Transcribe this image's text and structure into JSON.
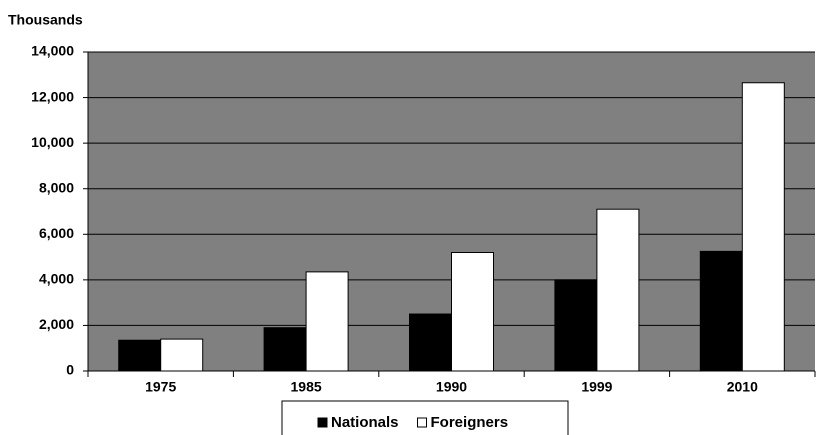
{
  "chart_data": {
    "type": "bar",
    "y_label": "Thousands",
    "categories": [
      "1975",
      "1985",
      "1990",
      "1999",
      "2010"
    ],
    "series": [
      {
        "name": "Nationals",
        "color": "#000000",
        "values": [
          1350,
          1900,
          2500,
          4000,
          5250
        ]
      },
      {
        "name": "Foreigners",
        "color": "#ffffff",
        "values": [
          1400,
          4350,
          5200,
          7100,
          12650
        ]
      }
    ],
    "ylim": [
      0,
      14000
    ],
    "yticks": [
      0,
      {
        "value": 2000,
        "label": "2,000"
      },
      {
        "value": 4000,
        "label": "4,000"
      },
      {
        "value": 6000,
        "label": "6,000"
      },
      {
        "value": 8000,
        "label": "8,000"
      },
      {
        "value": 10000,
        "label": "10,000"
      },
      {
        "value": 12000,
        "label": "12,000"
      },
      {
        "value": 14000,
        "label": "14,000"
      }
    ],
    "grid": true,
    "plot_background": "#808080",
    "legend": "bottom"
  }
}
